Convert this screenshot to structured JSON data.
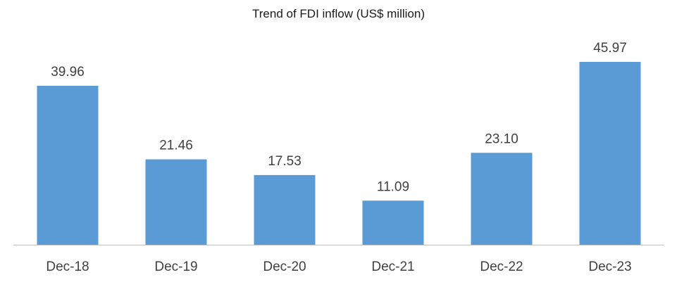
{
  "chart_data": {
    "type": "bar",
    "title": "Trend of FDI inflow (US$ million)",
    "categories": [
      "Dec-18",
      "Dec-19",
      "Dec-20",
      "Dec-21",
      "Dec-22",
      "Dec-23"
    ],
    "values": [
      39.96,
      21.46,
      17.53,
      11.09,
      23.1,
      45.97
    ],
    "value_labels": [
      "39.96",
      "21.46",
      "17.53",
      "11.09",
      "23.10",
      "45.97"
    ],
    "xlabel": "",
    "ylabel": "",
    "ylim": [
      0,
      50
    ],
    "grid": false,
    "legend": "none",
    "bar_color": "#5B9BD5",
    "axis_color": "#BFBFBF"
  }
}
